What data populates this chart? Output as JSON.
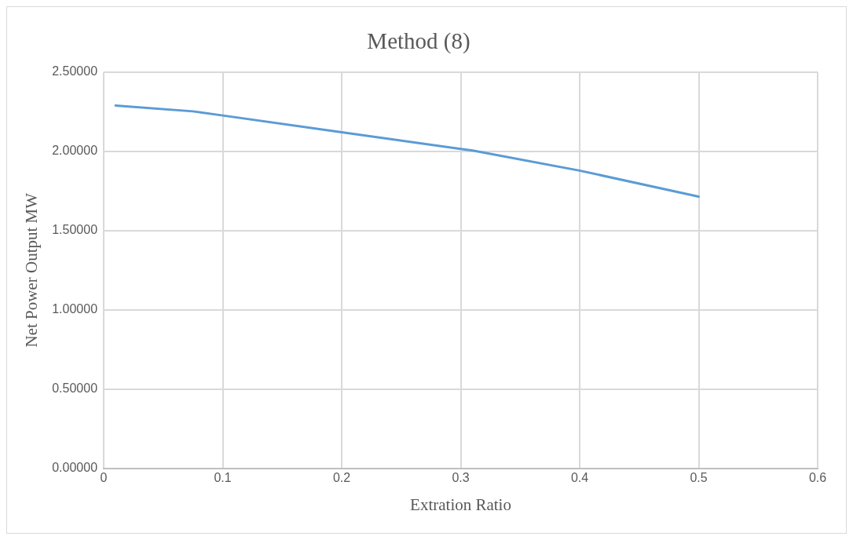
{
  "chart_data": {
    "type": "line",
    "title": "Method (8)",
    "xlabel": "Extration Ratio",
    "ylabel": "Net Power Output MW",
    "x": [
      0.01,
      0.075,
      0.1,
      0.2,
      0.3,
      0.31,
      0.4,
      0.5
    ],
    "series": [
      {
        "color": "#5b9bd5",
        "values": [
          2.289,
          2.252,
          2.226,
          2.12,
          2.015,
          2.005,
          1.878,
          1.714
        ]
      }
    ],
    "xlim": [
      0,
      0.6
    ],
    "xticks": [
      0,
      0.1,
      0.2,
      0.3,
      0.4,
      0.5,
      0.6
    ],
    "ylim": [
      0,
      2.5
    ],
    "yticks": [
      {
        "value": 0,
        "label": "0.00000"
      },
      {
        "value": 0.5,
        "label": "0.50000"
      },
      {
        "value": 1,
        "label": "1.00000"
      },
      {
        "value": 1.5,
        "label": "1.50000"
      },
      {
        "value": 2,
        "label": "2.00000"
      },
      {
        "value": 2.5,
        "label": "2.50000"
      }
    ],
    "grid": true,
    "legend": false,
    "marker": "none",
    "line_style": "solid"
  }
}
